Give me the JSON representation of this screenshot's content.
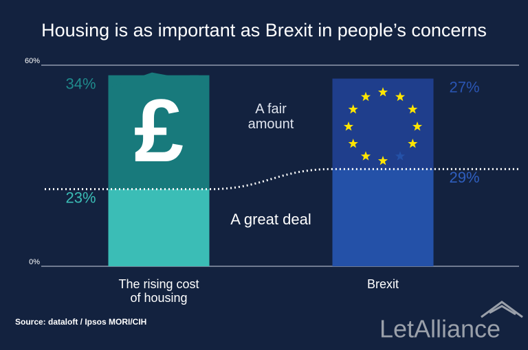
{
  "chart_data": {
    "type": "stacked_bar",
    "title": "Housing is as important as Brexit in people’s concerns",
    "categories": [
      "The rising cost\nof housing",
      "Brexit"
    ],
    "series": [
      {
        "name": "A great deal",
        "colors": [
          "#3bbdb6",
          "#2451a8"
        ],
        "label_colors": [
          "#3bbdb6",
          "#2f5fbf"
        ],
        "values": [
          23,
          29
        ],
        "value_labels": [
          "23%",
          "29%"
        ]
      },
      {
        "name": "A fair\namount",
        "colors": [
          "#187a7c",
          "#1f3e8c"
        ],
        "label_colors": [
          "#1f8a8c",
          "#2a55b3"
        ],
        "values": [
          34,
          27
        ],
        "value_labels": [
          "34%",
          "27%"
        ]
      }
    ],
    "ylim": [
      0,
      60
    ],
    "yticks": [
      {
        "value": 0,
        "label": "0%"
      },
      {
        "value": 60,
        "label": "60%"
      }
    ],
    "icon": "£",
    "source": "Source: dataloft / Ipsos MORI/CIH",
    "logo": "LetAlliance"
  }
}
